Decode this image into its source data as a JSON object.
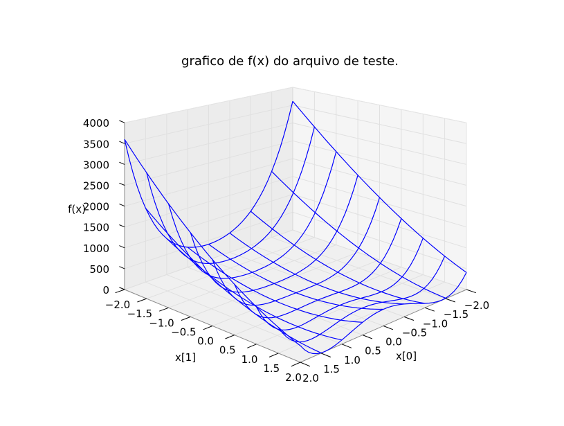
{
  "chart_data": {
    "type": "surface-3d-wireframe",
    "title": "grafico de f(x) do arquivo de teste.",
    "xlabel": "x[0]",
    "ylabel": "x[1]",
    "zlabel": "f(x)",
    "xlim": [
      -2.0,
      2.0
    ],
    "ylim": [
      -2.0,
      2.0
    ],
    "zlim": [
      0,
      4000
    ],
    "x_ticks": [
      "−2.0",
      "−1.5",
      "−1.0",
      "−0.5",
      "0.0",
      "0.5",
      "1.0",
      "1.5",
      "2.0"
    ],
    "y_ticks": [
      "−2.0",
      "−1.5",
      "−1.0",
      "−0.5",
      "0.0",
      "0.5",
      "1.0",
      "1.5",
      "2.0"
    ],
    "z_ticks": [
      "0",
      "500",
      "1000",
      "1500",
      "2000",
      "2500",
      "3000",
      "3500",
      "4000"
    ],
    "grid": true,
    "wire_color": "#0000ff",
    "pane_colors": {
      "back_left": "#ececec",
      "back_right": "#f5f5f5",
      "floor": "#f0f0f0",
      "grid": "#e0e0e0",
      "edge": "#8a8a8a"
    },
    "series": [
      {
        "grid_x": [
          -2.0,
          -1.5,
          -1.0,
          -0.5,
          0.0,
          0.5,
          1.0,
          1.5,
          2.0
        ],
        "grid_y": [
          -2.0,
          -1.5,
          -1.0,
          -0.5,
          0.0,
          0.5,
          1.0,
          1.5,
          2.0
        ],
        "z_at_corners": {
          "x-2_y-2": 3610,
          "x2_y-2": 410,
          "x-2_y2": 3610,
          "x2_y2": 410
        }
      }
    ]
  }
}
